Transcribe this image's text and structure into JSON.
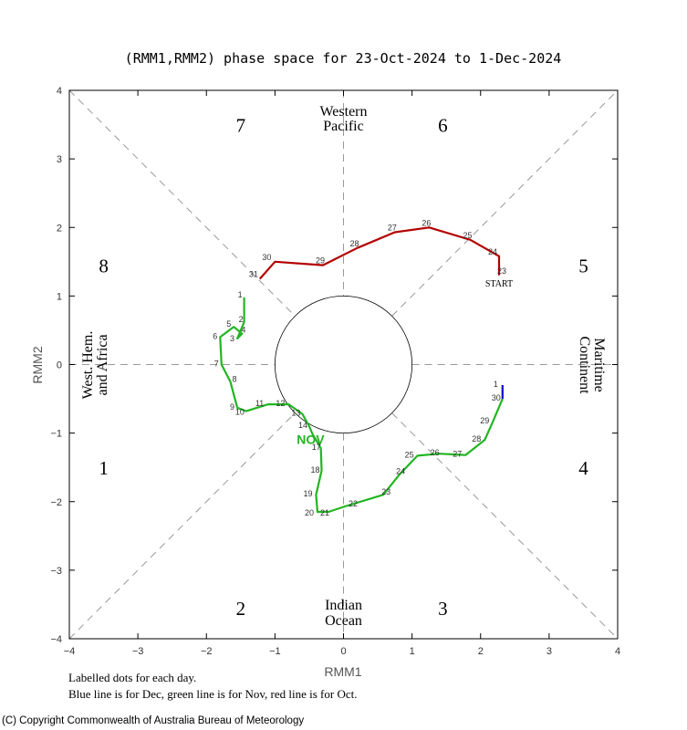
{
  "chart_data": {
    "type": "line",
    "title": "(RMM1,RMM2) phase space for 23-Oct-2024 to  1-Dec-2024",
    "xlabel": "RMM1",
    "ylabel": "RMM2",
    "xlim": [
      -4,
      4
    ],
    "ylim": [
      -4,
      4
    ],
    "xticks": [
      "−4",
      "−3",
      "−2",
      "−1",
      "0",
      "1",
      "2",
      "3",
      "4"
    ],
    "yticks": [
      "−4",
      "−3",
      "−2",
      "−1",
      "0",
      "1",
      "2",
      "3",
      "4"
    ],
    "phase_numbers": [
      "1",
      "2",
      "3",
      "4",
      "5",
      "6",
      "7",
      "8"
    ],
    "regions": {
      "western_pacific": [
        "Western",
        "Pacific"
      ],
      "maritime_continent": [
        "Maritime",
        "Continent"
      ],
      "indian_ocean": [
        "Indian",
        "Ocean"
      ],
      "west_hem_africa": [
        "West. Hem.",
        "and Africa"
      ]
    },
    "start_label": "START",
    "month_label": "NOV",
    "colors": {
      "oct": "#b30000",
      "nov": "#22b522",
      "dec": "#0000cc",
      "grid": "#999999"
    },
    "series": [
      {
        "name": "Oct",
        "points": [
          {
            "d": "23",
            "x": 2.27,
            "y": 1.3
          },
          {
            "d": "24",
            "x": 2.27,
            "y": 1.58
          },
          {
            "d": "25",
            "x": 1.85,
            "y": 1.82
          },
          {
            "d": "26",
            "x": 1.25,
            "y": 2.0
          },
          {
            "d": "27",
            "x": 0.75,
            "y": 1.93
          },
          {
            "d": "28",
            "x": 0.2,
            "y": 1.7
          },
          {
            "d": "29",
            "x": -0.3,
            "y": 1.45
          },
          {
            "d": "30",
            "x": -1.0,
            "y": 1.5
          },
          {
            "d": "31",
            "x": -1.22,
            "y": 1.25
          }
        ]
      },
      {
        "name": "Nov",
        "points": [
          {
            "d": "1",
            "x": -1.45,
            "y": 0.98
          },
          {
            "d": "2",
            "x": -1.45,
            "y": 0.62
          },
          {
            "d": "3",
            "x": -1.55,
            "y": 0.38
          },
          {
            "d": "4",
            "x": -1.48,
            "y": 0.45
          },
          {
            "d": "5",
            "x": -1.6,
            "y": 0.55
          },
          {
            "d": "6",
            "x": -1.8,
            "y": 0.4
          },
          {
            "d": "7",
            "x": -1.78,
            "y": 0.0
          },
          {
            "d": "8",
            "x": -1.65,
            "y": -0.25
          },
          {
            "d": "9",
            "x": -1.55,
            "y": -0.63
          },
          {
            "d": "10",
            "x": -1.42,
            "y": -0.68
          },
          {
            "d": "11",
            "x": -1.1,
            "y": -0.58
          },
          {
            "d": "12",
            "x": -0.8,
            "y": -0.58
          },
          {
            "d": "13",
            "x": -0.6,
            "y": -0.72
          },
          {
            "d": "14",
            "x": -0.5,
            "y": -0.9
          },
          {
            "d": "15",
            "x": -0.45,
            "y": -1.02
          },
          {
            "d": "16",
            "x": -0.4,
            "y": -1.1
          },
          {
            "d": "17",
            "x": -0.33,
            "y": -1.22
          },
          {
            "d": "18",
            "x": -0.32,
            "y": -1.55
          },
          {
            "d": "19",
            "x": -0.4,
            "y": -1.9
          },
          {
            "d": "20",
            "x": -0.38,
            "y": -2.15
          },
          {
            "d": "21",
            "x": -0.22,
            "y": -2.15
          },
          {
            "d": "22",
            "x": 0.02,
            "y": -2.07
          },
          {
            "d": "23",
            "x": 0.58,
            "y": -1.9
          },
          {
            "d": "24",
            "x": 0.82,
            "y": -1.6
          },
          {
            "d": "25",
            "x": 1.08,
            "y": -1.33
          },
          {
            "d": "26",
            "x": 1.4,
            "y": -1.3
          },
          {
            "d": "27",
            "x": 1.78,
            "y": -1.32
          },
          {
            "d": "28",
            "x": 2.06,
            "y": -1.1
          },
          {
            "d": "29",
            "x": 2.18,
            "y": -0.83
          },
          {
            "d": "30",
            "x": 2.32,
            "y": -0.5
          }
        ]
      },
      {
        "name": "Dec",
        "points": [
          {
            "d": "30",
            "x": 2.32,
            "y": -0.5
          },
          {
            "d": "1",
            "x": 2.32,
            "y": -0.3
          }
        ]
      }
    ]
  },
  "footnotes": {
    "line1": "Labelled dots for each day.",
    "line2": "Blue line is for Dec, green line is for Nov, red line is for Oct."
  },
  "copyright": "(C) Copyright Commonwealth of Australia Bureau of Meteorology"
}
